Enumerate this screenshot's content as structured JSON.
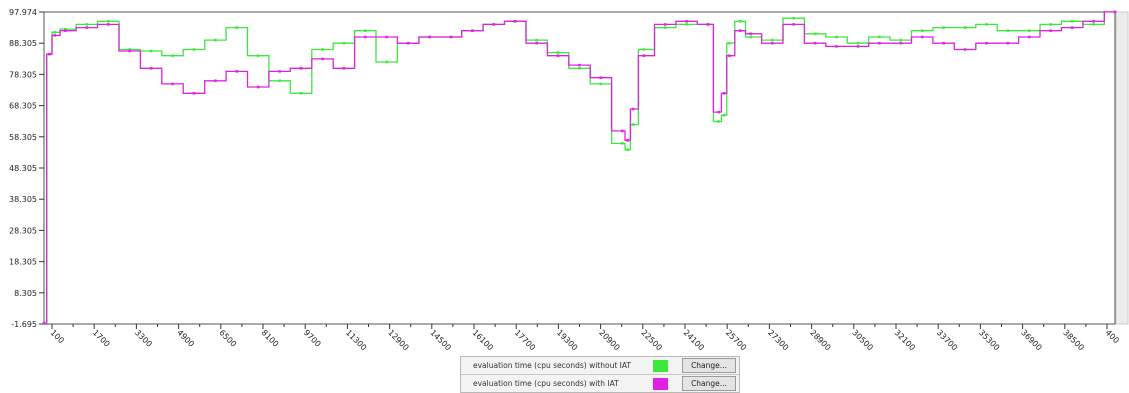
{
  "chart_data": {
    "type": "line",
    "ylim": [
      -1.695,
      97.974
    ],
    "ytick_labels": [
      "97.974",
      "88.305",
      "78.305",
      "68.305",
      "58.305",
      "48.305",
      "38.305",
      "28.305",
      "18.305",
      "8.305",
      "-1.695"
    ],
    "xtick_labels": [
      "100",
      "1700",
      "3300",
      "4900",
      "6500",
      "8100",
      "9700",
      "11300",
      "12900",
      "14500",
      "16100",
      "17700",
      "19300",
      "20900",
      "22500",
      "24100",
      "25700",
      "27300",
      "28900",
      "30500",
      "32100",
      "33700",
      "35300",
      "36900",
      "38500",
      "400"
    ],
    "x": [
      0,
      0.005,
      0.01,
      0.02,
      0.04,
      0.06,
      0.08,
      0.1,
      0.12,
      0.14,
      0.16,
      0.18,
      0.2,
      0.22,
      0.24,
      0.26,
      0.28,
      0.3,
      0.32,
      0.34,
      0.36,
      0.38,
      0.4,
      0.42,
      0.44,
      0.46,
      0.48,
      0.5,
      0.52,
      0.54,
      0.545,
      0.55,
      0.56,
      0.58,
      0.6,
      0.62,
      0.63,
      0.635,
      0.64,
      0.65,
      0.66,
      0.68,
      0.7,
      0.72,
      0.74,
      0.76,
      0.78,
      0.8,
      0.82,
      0.84,
      0.86,
      0.88,
      0.9,
      0.92,
      0.94,
      0.96,
      0.98,
      1
    ],
    "series": [
      {
        "name": "evaluation time (cpu seconds) without IAT",
        "color": "#3de83d",
        "values": [
          -1.5,
          84.5,
          91.5,
          92.5,
          94,
          95,
          86,
          85.5,
          84,
          86,
          89,
          93,
          84,
          76,
          72,
          86,
          88,
          92,
          82,
          88,
          90,
          90,
          92,
          94,
          95,
          89,
          85,
          80,
          75,
          56,
          54,
          62,
          86,
          93,
          94,
          94,
          63,
          65,
          88,
          95,
          90,
          89,
          96,
          91,
          90,
          88,
          90,
          89,
          92,
          93,
          93,
          94,
          92,
          92,
          94,
          95,
          94,
          98
        ]
      },
      {
        "name": "evaluation time (cpu seconds) with IAT",
        "color": "#e020e0",
        "values": [
          -1.5,
          84.5,
          90.5,
          92,
          93,
          94,
          85.5,
          80,
          75,
          72,
          76,
          79,
          74,
          79,
          80,
          83,
          80,
          90,
          90,
          88,
          90,
          90,
          92,
          94,
          95,
          88,
          84,
          81,
          77,
          60,
          57,
          67,
          84,
          94,
          95,
          94,
          66,
          72,
          84,
          92,
          91,
          88,
          94,
          88,
          87,
          87,
          88,
          88,
          90,
          88,
          86,
          88,
          88,
          90,
          92,
          93,
          95,
          98
        ]
      }
    ],
    "grid": false,
    "legend_position": "bottom-center"
  },
  "legend": {
    "items": [
      {
        "label": "evaluation time (cpu seconds) without IAT",
        "color": "#3de83d",
        "button": "Change..."
      },
      {
        "label": "evaluation time (cpu seconds) with IAT",
        "color": "#e020e0",
        "button": "Change..."
      }
    ]
  }
}
